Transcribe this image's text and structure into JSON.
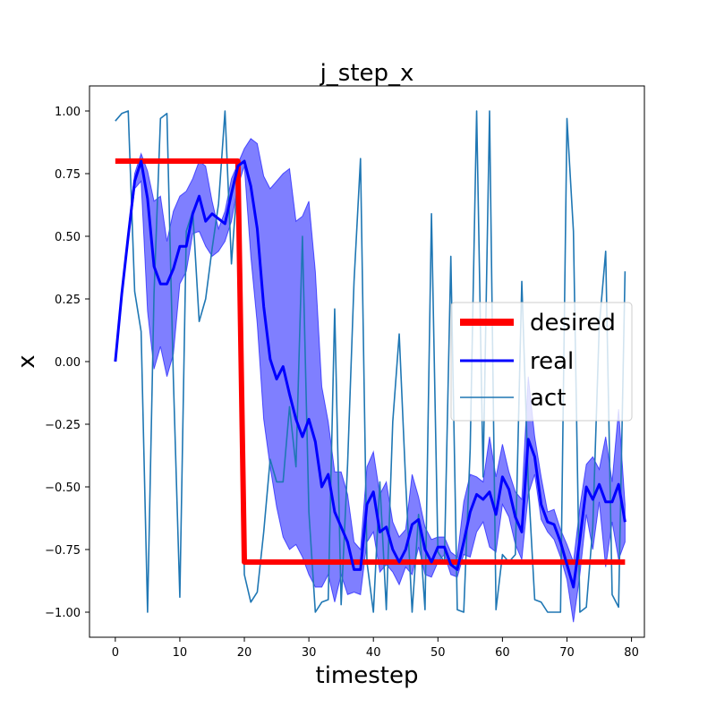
{
  "chart_data": {
    "type": "line",
    "title": "j_step_x",
    "xlabel": "timestep",
    "ylabel": "x",
    "xlim": [
      -4,
      82
    ],
    "ylim": [
      -1.1,
      1.1
    ],
    "xticks": [
      0,
      10,
      20,
      30,
      40,
      50,
      60,
      70,
      80
    ],
    "yticks": [
      -1.0,
      -0.75,
      -0.5,
      -0.25,
      0.0,
      0.25,
      0.5,
      0.75,
      1.0
    ],
    "ytick_labels": [
      "−1.00",
      "−0.75",
      "−0.50",
      "−0.25",
      "0.00",
      "0.25",
      "0.50",
      "0.75",
      "1.00"
    ],
    "grid": false,
    "legend_position": "center-right",
    "x": [
      0,
      1,
      2,
      3,
      4,
      5,
      6,
      7,
      8,
      9,
      10,
      11,
      12,
      13,
      14,
      15,
      16,
      17,
      18,
      19,
      20,
      21,
      22,
      23,
      24,
      25,
      26,
      27,
      28,
      29,
      30,
      31,
      32,
      33,
      34,
      35,
      36,
      37,
      38,
      39,
      40,
      41,
      42,
      43,
      44,
      45,
      46,
      47,
      48,
      49,
      50,
      51,
      52,
      53,
      54,
      55,
      56,
      57,
      58,
      59,
      60,
      61,
      62,
      63,
      64,
      65,
      66,
      67,
      68,
      69,
      70,
      71,
      72,
      73,
      74,
      75,
      76,
      77,
      78,
      79
    ],
    "series": [
      {
        "name": "desired",
        "color": "#ff0000",
        "values": [
          0.8,
          0.8,
          0.8,
          0.8,
          0.8,
          0.8,
          0.8,
          0.8,
          0.8,
          0.8,
          0.8,
          0.8,
          0.8,
          0.8,
          0.8,
          0.8,
          0.8,
          0.8,
          0.8,
          0.8,
          -0.8,
          -0.8,
          -0.8,
          -0.8,
          -0.8,
          -0.8,
          -0.8,
          -0.8,
          -0.8,
          -0.8,
          -0.8,
          -0.8,
          -0.8,
          -0.8,
          -0.8,
          -0.8,
          -0.8,
          -0.8,
          -0.8,
          -0.8,
          -0.8,
          -0.8,
          -0.8,
          -0.8,
          -0.8,
          -0.8,
          -0.8,
          -0.8,
          -0.8,
          -0.8,
          -0.8,
          -0.8,
          -0.8,
          -0.8,
          -0.8,
          -0.8,
          -0.8,
          -0.8,
          -0.8,
          -0.8,
          -0.8,
          -0.8,
          -0.8,
          -0.8,
          -0.8,
          -0.8,
          -0.8,
          -0.8,
          -0.8,
          -0.8,
          -0.8,
          -0.8,
          -0.8,
          -0.8,
          -0.8,
          -0.8,
          -0.8,
          -0.8,
          -0.8,
          -0.8
        ]
      },
      {
        "name": "real",
        "color": "#0000ff",
        "values": [
          0.0,
          0.27,
          0.5,
          0.72,
          0.8,
          0.65,
          0.38,
          0.31,
          0.31,
          0.37,
          0.46,
          0.46,
          0.59,
          0.66,
          0.56,
          0.59,
          0.57,
          0.55,
          0.67,
          0.78,
          0.8,
          0.7,
          0.53,
          0.22,
          0.01,
          -0.07,
          -0.02,
          -0.13,
          -0.23,
          -0.3,
          -0.23,
          -0.32,
          -0.5,
          -0.45,
          -0.6,
          -0.66,
          -0.72,
          -0.83,
          -0.83,
          -0.57,
          -0.52,
          -0.68,
          -0.66,
          -0.75,
          -0.8,
          -0.75,
          -0.65,
          -0.63,
          -0.75,
          -0.8,
          -0.74,
          -0.74,
          -0.81,
          -0.83,
          -0.72,
          -0.6,
          -0.53,
          -0.55,
          -0.52,
          -0.61,
          -0.46,
          -0.51,
          -0.62,
          -0.68,
          -0.31,
          -0.38,
          -0.57,
          -0.64,
          -0.65,
          -0.72,
          -0.81,
          -0.9,
          -0.71,
          -0.5,
          -0.55,
          -0.49,
          -0.56,
          -0.56,
          -0.49,
          -0.64
        ]
      },
      {
        "name": "act",
        "color": "#1f77b4",
        "values": [
          0.96,
          0.99,
          1.0,
          0.28,
          0.12,
          -1.0,
          0.27,
          0.97,
          0.99,
          -0.07,
          -0.94,
          0.52,
          0.6,
          0.16,
          0.25,
          0.45,
          0.63,
          1.0,
          0.39,
          0.75,
          -0.85,
          -0.96,
          -0.92,
          -0.68,
          -0.39,
          -0.48,
          -0.48,
          -0.18,
          -0.42,
          0.5,
          -0.6,
          -1.0,
          -0.96,
          -0.95,
          0.21,
          -0.97,
          -0.41,
          0.32,
          0.81,
          -0.8,
          -1.0,
          -0.48,
          -0.99,
          -0.24,
          0.11,
          -0.48,
          -1.0,
          -0.61,
          -0.99,
          0.59,
          -0.76,
          -0.8,
          0.42,
          -0.99,
          -1.0,
          -0.35,
          1.0,
          -0.46,
          1.0,
          -0.99,
          -0.77,
          -0.8,
          -0.77,
          0.32,
          -0.48,
          -0.95,
          -0.96,
          -1.0,
          -1.0,
          -1.0,
          0.97,
          0.52,
          -1.0,
          -0.98,
          -0.66,
          0.14,
          0.44,
          -0.93,
          -0.98,
          0.36
        ]
      }
    ],
    "band": {
      "upper": [
        0.0,
        0.28,
        0.52,
        0.75,
        0.83,
        0.76,
        0.64,
        0.66,
        0.48,
        0.6,
        0.66,
        0.68,
        0.73,
        0.8,
        0.78,
        0.64,
        0.53,
        0.6,
        0.73,
        0.79,
        0.85,
        0.89,
        0.87,
        0.74,
        0.69,
        0.72,
        0.75,
        0.77,
        0.56,
        0.58,
        0.64,
        0.36,
        -0.1,
        -0.24,
        -0.44,
        -0.44,
        -0.53,
        -0.72,
        -0.75,
        -0.42,
        -0.36,
        -0.53,
        -0.48,
        -0.64,
        -0.7,
        -0.67,
        -0.45,
        -0.54,
        -0.66,
        -0.71,
        -0.7,
        -0.7,
        -0.76,
        -0.78,
        -0.56,
        -0.45,
        -0.46,
        -0.48,
        -0.3,
        -0.46,
        -0.33,
        -0.44,
        -0.52,
        -0.55,
        -0.06,
        -0.3,
        -0.46,
        -0.6,
        -0.59,
        -0.67,
        -0.73,
        -0.8,
        -0.58,
        -0.41,
        -0.38,
        -0.43,
        -0.3,
        -0.48,
        -0.19,
        -0.57
      ],
      "lower": [
        0.0,
        0.26,
        0.48,
        0.69,
        0.72,
        0.2,
        -0.03,
        0.06,
        -0.06,
        0.03,
        0.31,
        0.36,
        0.51,
        0.52,
        0.46,
        0.42,
        0.44,
        0.48,
        0.56,
        0.7,
        0.78,
        0.42,
        0.15,
        -0.23,
        -0.42,
        -0.58,
        -0.7,
        -0.75,
        -0.73,
        -0.78,
        -0.85,
        -0.9,
        -0.9,
        -0.85,
        -0.96,
        -0.85,
        -0.93,
        -0.92,
        -0.93,
        -0.72,
        -0.68,
        -0.84,
        -0.81,
        -0.84,
        -0.89,
        -0.82,
        -0.85,
        -0.74,
        -0.85,
        -0.86,
        -0.8,
        -0.77,
        -0.85,
        -0.86,
        -0.77,
        -0.78,
        -0.68,
        -0.64,
        -0.74,
        -0.76,
        -0.57,
        -0.62,
        -0.73,
        -0.79,
        -0.53,
        -0.45,
        -0.63,
        -0.68,
        -0.71,
        -0.78,
        -0.87,
        -1.04,
        -0.85,
        -0.61,
        -0.75,
        -0.56,
        -0.82,
        -0.64,
        -0.79,
        -0.72
      ],
      "color": "#0000ff",
      "opacity": 0.5
    }
  }
}
